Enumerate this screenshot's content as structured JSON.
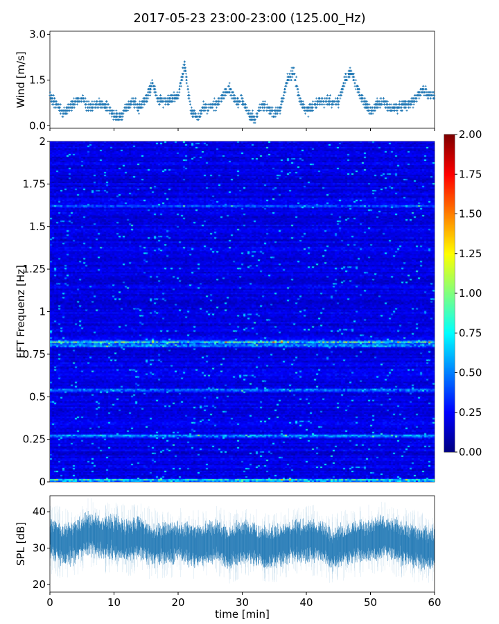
{
  "title": "2017-05-23 23:00-23:00 (125.00_Hz)",
  "chart_data": [
    {
      "type": "scatter",
      "name": "wind",
      "ylabel": "Wind [m/s]",
      "ylim": [
        -0.08,
        3.1
      ],
      "yticks": [
        0.0,
        1.5,
        3.0
      ],
      "ytick_labels": [
        "0.0",
        "1.5",
        "3.0"
      ],
      "xlim": [
        0,
        60
      ],
      "xticks": [
        0,
        10,
        20,
        30,
        40,
        50,
        60
      ],
      "marker": "+",
      "color": "#1f77b4",
      "x_minutes": [
        0,
        1,
        2,
        3,
        4,
        5,
        6,
        7,
        8,
        9,
        10,
        11,
        12,
        13,
        14,
        15,
        16,
        17,
        18,
        19,
        20,
        21,
        22,
        23,
        24,
        25,
        26,
        27,
        28,
        29,
        30,
        31,
        32,
        33,
        34,
        35,
        36,
        37,
        38,
        39,
        40,
        41,
        42,
        43,
        44,
        45,
        46,
        47,
        48,
        49,
        50,
        51,
        52,
        53,
        54,
        55,
        56,
        57,
        58,
        59,
        60
      ],
      "values": [
        1.0,
        0.7,
        0.4,
        0.6,
        0.8,
        0.9,
        0.6,
        0.7,
        0.7,
        0.6,
        0.3,
        0.3,
        0.6,
        0.8,
        0.6,
        0.9,
        1.4,
        0.8,
        0.8,
        0.9,
        1.0,
        2.0,
        0.5,
        0.3,
        0.6,
        0.6,
        0.7,
        1.0,
        1.2,
        0.8,
        0.8,
        0.4,
        0.2,
        0.7,
        0.6,
        0.4,
        0.6,
        1.5,
        1.8,
        0.8,
        0.5,
        0.6,
        0.8,
        0.8,
        0.8,
        0.8,
        1.5,
        1.8,
        1.2,
        0.8,
        0.5,
        0.7,
        0.8,
        0.6,
        0.6,
        0.7,
        0.7,
        0.9,
        1.2,
        1.0,
        1.0
      ]
    },
    {
      "type": "heatmap",
      "name": "spectrogram",
      "ylabel": "FFT Frequenz [Hz]",
      "ylim": [
        0,
        2
      ],
      "yticks": [
        0,
        0.25,
        0.5,
        0.75,
        1,
        1.25,
        1.5,
        1.75,
        2
      ],
      "ytick_labels": [
        "0",
        "0.25",
        "0.5",
        "0.75",
        "1",
        "1.25",
        "1.5",
        "1.75",
        "2"
      ],
      "xlim": [
        0,
        60
      ],
      "colormap": "jet",
      "clim": [
        0,
        2
      ],
      "background_level": 0.2,
      "bands_hz": [
        0.01,
        0.27,
        0.54,
        0.82,
        0.8,
        1.62
      ],
      "band_levels": [
        1.0,
        0.7,
        0.6,
        1.1,
        0.8,
        0.35
      ],
      "colorbar_ticks": [
        0.0,
        0.25,
        0.5,
        0.75,
        1.0,
        1.25,
        1.5,
        1.75,
        2.0
      ],
      "colorbar_labels": [
        "0.00",
        "0.25",
        "0.50",
        "0.75",
        "1.00",
        "1.25",
        "1.50",
        "1.75",
        "2.00"
      ]
    },
    {
      "type": "area",
      "name": "spl",
      "ylabel": "SPL [dB]",
      "xlabel": "time [min]",
      "ylim": [
        17.9,
        44.4
      ],
      "yticks": [
        20,
        30,
        40
      ],
      "ytick_labels": [
        "20",
        "30",
        "40"
      ],
      "xlim": [
        0,
        60
      ],
      "xticks": [
        0,
        10,
        20,
        30,
        40,
        50,
        60
      ],
      "xtick_labels": [
        "0",
        "10",
        "20",
        "30",
        "40",
        "50",
        "60"
      ],
      "color": "#1f77b4",
      "x_minutes": [
        0,
        2,
        4,
        6,
        8,
        10,
        12,
        14,
        16,
        18,
        20,
        22,
        24,
        26,
        28,
        30,
        32,
        34,
        36,
        38,
        40,
        42,
        44,
        46,
        48,
        50,
        52,
        54,
        56,
        58,
        60
      ],
      "mean_db": [
        33,
        31,
        32,
        34,
        33,
        33,
        32,
        33,
        31,
        31,
        32,
        31,
        31,
        32,
        30,
        32,
        31,
        30,
        31,
        32,
        32,
        32,
        30,
        31,
        32,
        32,
        33,
        32,
        31,
        30,
        30
      ],
      "spread_db": 4
    }
  ]
}
